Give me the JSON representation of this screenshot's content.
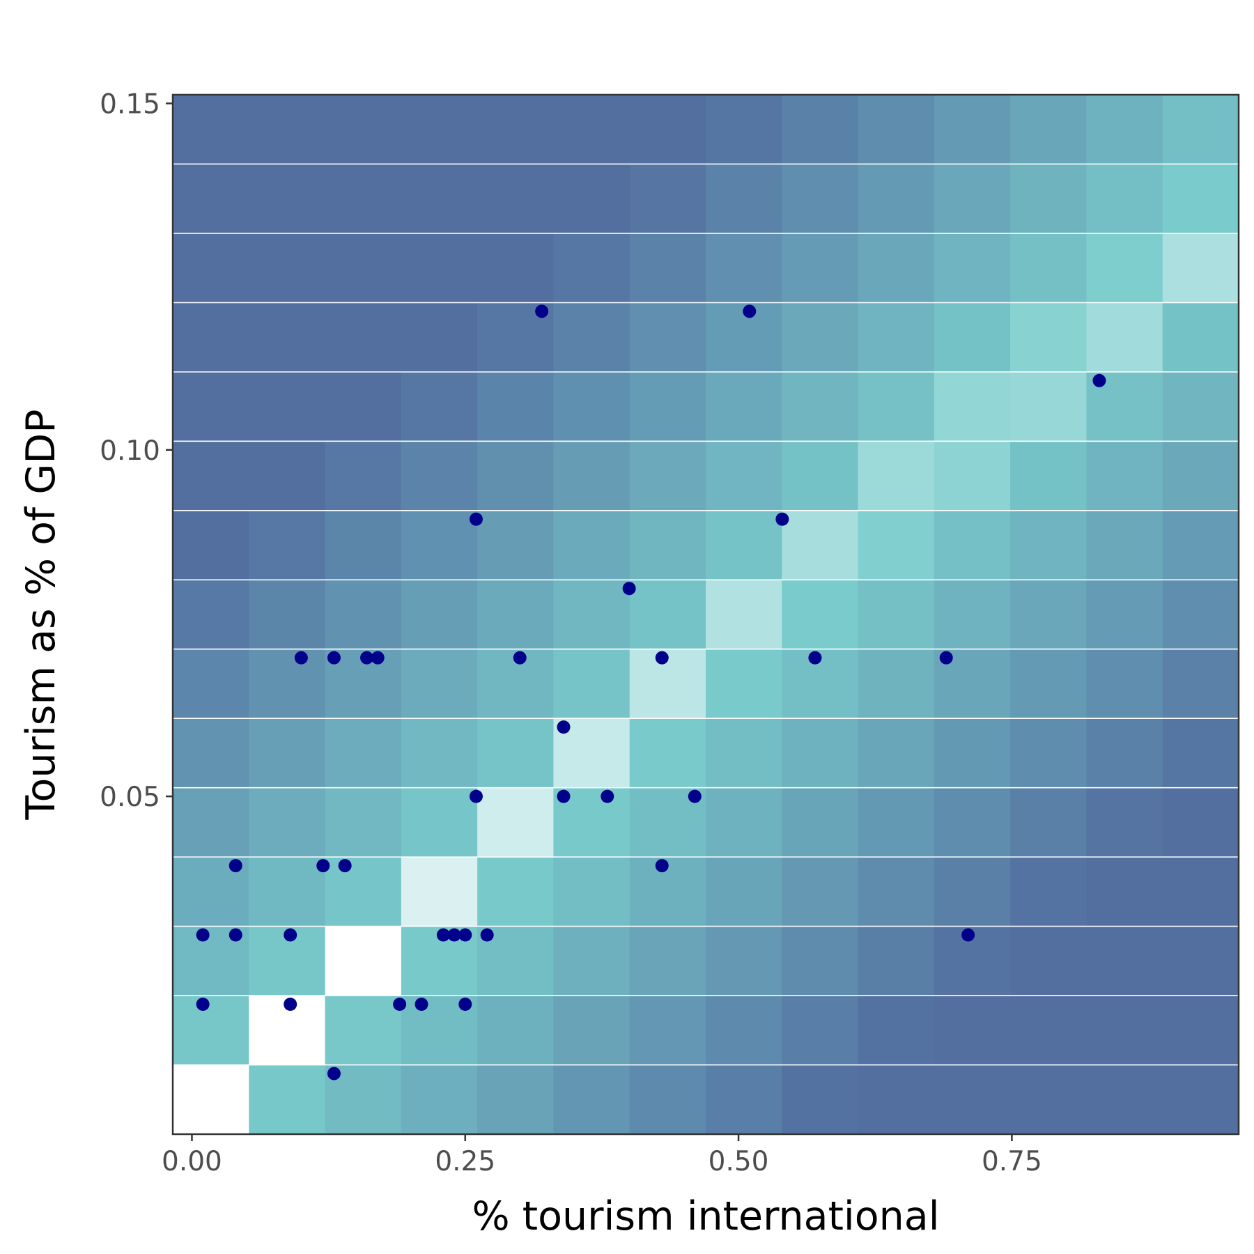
{
  "chart_data": {
    "type": "scatter",
    "title": "",
    "xlabel": "% tourism international",
    "ylabel": "Tourism as % of GDP",
    "xlim": [
      -0.0175,
      0.9575
    ],
    "ylim": [
      0.00125,
      0.15125
    ],
    "x_ticks": [
      0.0,
      0.25,
      0.5,
      0.75
    ],
    "x_tick_labels": [
      "0.00",
      "0.25",
      "0.50",
      "0.75"
    ],
    "y_ticks": [
      0.05,
      0.1,
      0.15
    ],
    "y_tick_labels": [
      "0.05",
      "0.10",
      "0.15"
    ],
    "grid": true,
    "legend": "none",
    "point_color": "#00008b",
    "background_heatmap": {
      "type": "heatmap",
      "x_bins": 14,
      "y_bins": 15,
      "color_low": "#ffffff",
      "color_mid": "#79cccb",
      "color_high": "#536fa0"
    },
    "points": [
      {
        "x": 0.32,
        "y": 0.12
      },
      {
        "x": 0.51,
        "y": 0.12
      },
      {
        "x": 0.83,
        "y": 0.11
      },
      {
        "x": 0.26,
        "y": 0.09
      },
      {
        "x": 0.54,
        "y": 0.09
      },
      {
        "x": 0.4,
        "y": 0.08
      },
      {
        "x": 0.1,
        "y": 0.07
      },
      {
        "x": 0.13,
        "y": 0.07
      },
      {
        "x": 0.16,
        "y": 0.07
      },
      {
        "x": 0.17,
        "y": 0.07
      },
      {
        "x": 0.3,
        "y": 0.07
      },
      {
        "x": 0.43,
        "y": 0.07
      },
      {
        "x": 0.57,
        "y": 0.07
      },
      {
        "x": 0.69,
        "y": 0.07
      },
      {
        "x": 0.34,
        "y": 0.06
      },
      {
        "x": 0.26,
        "y": 0.05
      },
      {
        "x": 0.34,
        "y": 0.05
      },
      {
        "x": 0.38,
        "y": 0.05
      },
      {
        "x": 0.46,
        "y": 0.05
      },
      {
        "x": 0.04,
        "y": 0.04
      },
      {
        "x": 0.12,
        "y": 0.04
      },
      {
        "x": 0.14,
        "y": 0.04
      },
      {
        "x": 0.43,
        "y": 0.04
      },
      {
        "x": 0.01,
        "y": 0.03
      },
      {
        "x": 0.04,
        "y": 0.03
      },
      {
        "x": 0.09,
        "y": 0.03
      },
      {
        "x": 0.23,
        "y": 0.03
      },
      {
        "x": 0.24,
        "y": 0.03
      },
      {
        "x": 0.25,
        "y": 0.03
      },
      {
        "x": 0.27,
        "y": 0.03
      },
      {
        "x": 0.71,
        "y": 0.03
      },
      {
        "x": 0.01,
        "y": 0.02
      },
      {
        "x": 0.09,
        "y": 0.02
      },
      {
        "x": 0.19,
        "y": 0.02
      },
      {
        "x": 0.21,
        "y": 0.02
      },
      {
        "x": 0.25,
        "y": 0.02
      },
      {
        "x": 0.13,
        "y": 0.01
      }
    ]
  }
}
